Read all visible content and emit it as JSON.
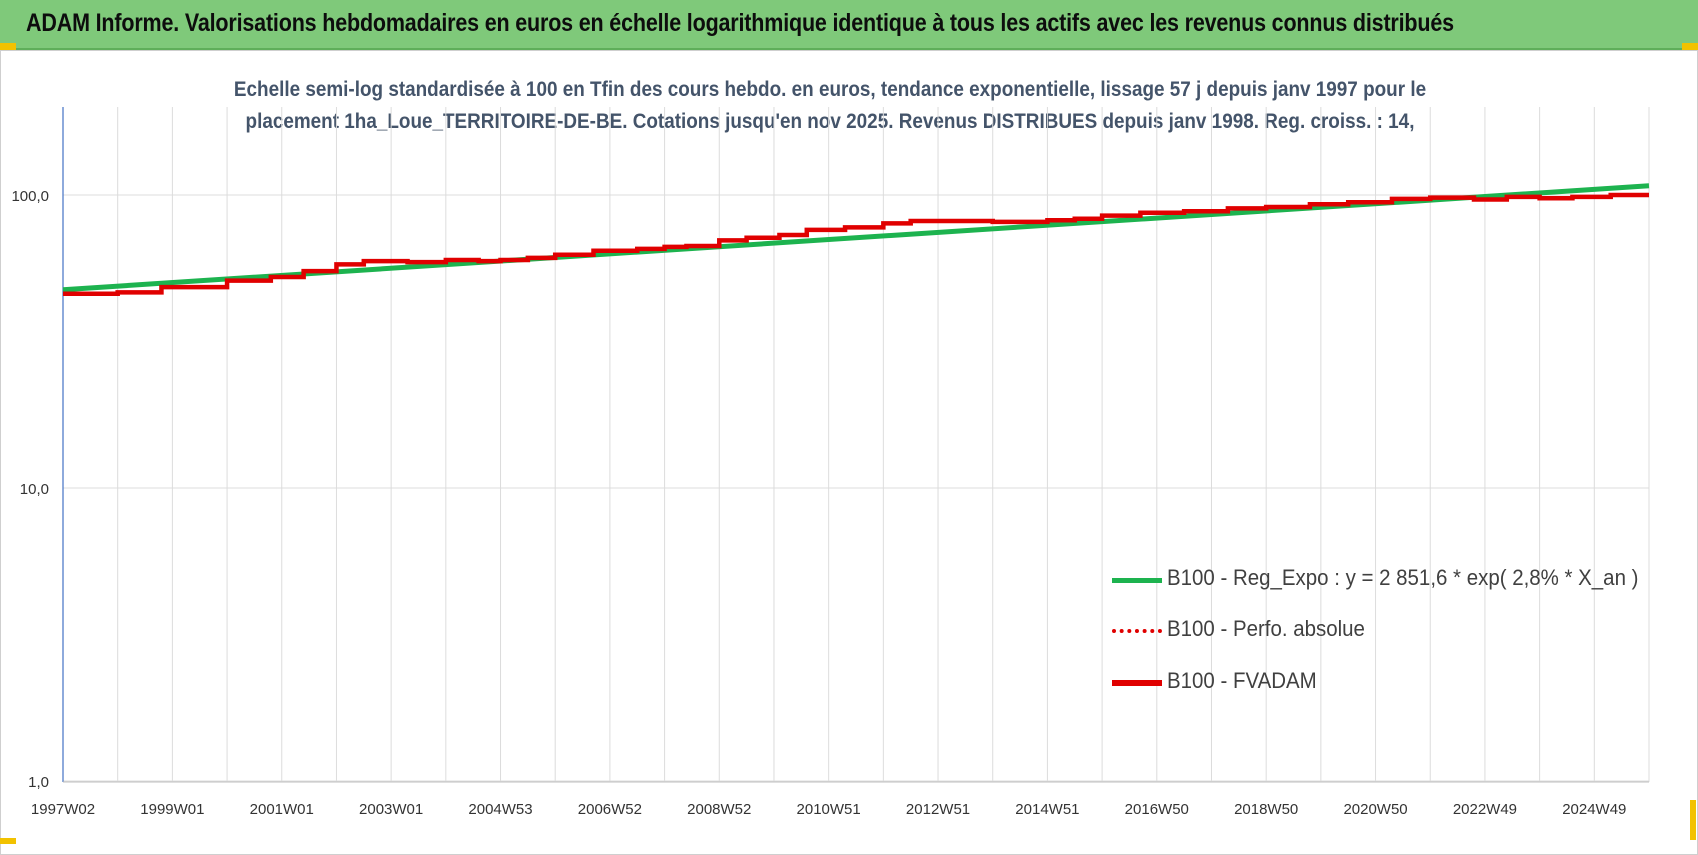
{
  "banner": {
    "title": "ADAM Informe. Valorisations hebdomadaires en euros en échelle logarithmique identique à tous les actifs avec les revenus connus distribués"
  },
  "chart_data": {
    "type": "line",
    "title_line1": "Echelle semi-log standardisée à 100 en Tfin des cours hebdo. en euros, tendance exponentielle, lissage 57 j depuis janv 1997 pour le",
    "title_line2": "placement 1ha_Loue_TERRITOIRE-DE-BE. Cotations jusqu'en nov 2025. Revenus DISTRIBUES depuis janv 1998. Reg. croiss. : 14,",
    "y_scale": "log",
    "ylim": [
      1,
      190
    ],
    "y_ticks": [
      1,
      10,
      100
    ],
    "y_tick_labels": [
      "1,0",
      "10,0",
      "100,0"
    ],
    "xlim": [
      1997.0,
      2026.0
    ],
    "x_ticks": [
      1997.0,
      1999.0,
      2001.0,
      2003.0,
      2005.0,
      2007.0,
      2009.0,
      2011.0,
      2013.0,
      2015.0,
      2017.0,
      2019.0,
      2021.0,
      2023.0,
      2025.0
    ],
    "x_tick_labels": [
      "1997W02",
      "1999W01",
      "2001W01",
      "2003W01",
      "2004W53",
      "2006W52",
      "2008W52",
      "2010W51",
      "2012W51",
      "2014W51",
      "2016W50",
      "2018W50",
      "2020W50",
      "2022W49",
      "2024W49"
    ],
    "grid": true,
    "legend_position": "bottom-right",
    "series": [
      {
        "name": "B100 - Reg_Expo : y = 2 851,6 * exp( 2,8% *  X_an )",
        "color": "#1db34f",
        "style": "solid",
        "x": [
          1997.0,
          2026.0
        ],
        "values": [
          47.5,
          107.5
        ]
      },
      {
        "name": "B100 - Perfo. absolue",
        "color": "#e00000",
        "style": "dotted",
        "x": [
          1997.0,
          1998.0,
          1998.8,
          2000.0,
          2000.8,
          2001.4,
          2002.0,
          2002.5,
          2003.3,
          2004.0,
          2004.6,
          2005.0,
          2005.5,
          2006.0,
          2006.7,
          2007.5,
          2008.0,
          2008.4,
          2009.0,
          2009.5,
          2010.1,
          2010.6,
          2011.3,
          2012.0,
          2012.5,
          2013.2,
          2014.0,
          2015.0,
          2015.5,
          2016.0,
          2016.7,
          2017.5,
          2018.3,
          2019.0,
          2019.8,
          2020.5,
          2021.3,
          2022.0,
          2022.8,
          2023.4,
          2024.0,
          2024.6,
          2025.3,
          2026.0
        ],
        "values": [
          46.0,
          46.5,
          48.5,
          51.0,
          52.5,
          55.0,
          58.0,
          59.5,
          59.0,
          60.0,
          59.5,
          60.0,
          61.0,
          62.5,
          64.5,
          65.5,
          66.5,
          67.0,
          70.0,
          71.5,
          73.0,
          76.0,
          77.5,
          80.0,
          81.5,
          81.5,
          81.0,
          82.0,
          83.0,
          85.0,
          87.0,
          88.0,
          90.0,
          91.0,
          93.0,
          94.5,
          97.0,
          98.0,
          96.5,
          98.5,
          97.5,
          98.5,
          100.0,
          100.0
        ]
      },
      {
        "name": "B100 - FVADAM",
        "color": "#e00000",
        "style": "solid",
        "x": [
          1997.0,
          1998.0,
          1998.8,
          2000.0,
          2000.8,
          2001.4,
          2002.0,
          2002.5,
          2003.3,
          2004.0,
          2004.6,
          2005.0,
          2005.5,
          2006.0,
          2006.7,
          2007.5,
          2008.0,
          2008.4,
          2009.0,
          2009.5,
          2010.1,
          2010.6,
          2011.3,
          2012.0,
          2012.5,
          2013.2,
          2014.0,
          2015.0,
          2015.5,
          2016.0,
          2016.7,
          2017.5,
          2018.3,
          2019.0,
          2019.8,
          2020.5,
          2021.3,
          2022.0,
          2022.8,
          2023.4,
          2024.0,
          2024.6,
          2025.3,
          2026.0
        ],
        "values": [
          46.0,
          46.5,
          48.5,
          51.0,
          52.5,
          55.0,
          58.0,
          59.5,
          59.0,
          60.0,
          59.5,
          60.0,
          61.0,
          62.5,
          64.5,
          65.5,
          66.5,
          67.0,
          70.0,
          71.5,
          73.0,
          76.0,
          77.5,
          80.0,
          81.5,
          81.5,
          81.0,
          82.0,
          83.0,
          85.0,
          87.0,
          88.0,
          90.0,
          91.0,
          93.0,
          94.5,
          97.0,
          98.0,
          96.5,
          98.5,
          97.5,
          98.5,
          100.0,
          100.0
        ]
      }
    ]
  }
}
